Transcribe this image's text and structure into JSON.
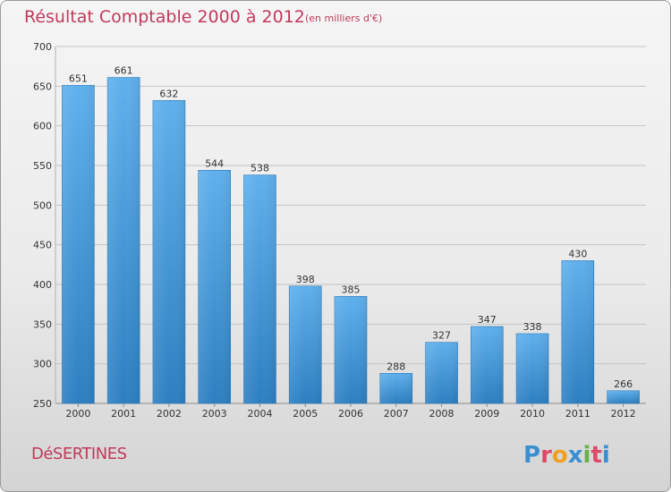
{
  "header": {
    "title": "Résultat Comptable 2000 à 2012",
    "subtitle": "(en milliers d'€)"
  },
  "footer": {
    "town": "DéSERTINES",
    "logo_text": "Proxiti"
  },
  "colors": {
    "title": "#c03a5a",
    "bar_top": "#5fb0ec",
    "bar_bottom": "#2d7fc1",
    "logo": [
      "#3a8fd1",
      "#e04a6a",
      "#f0a020",
      "#3a8fd1",
      "#6ab04c",
      "#e04a6a",
      "#3a8fd1"
    ]
  },
  "chart_data": {
    "type": "bar",
    "categories": [
      "2000",
      "2001",
      "2002",
      "2003",
      "2004",
      "2005",
      "2006",
      "2007",
      "2008",
      "2009",
      "2010",
      "2011",
      "2012"
    ],
    "values": [
      651,
      661,
      632,
      544,
      538,
      398,
      385,
      288,
      327,
      347,
      338,
      430,
      266
    ],
    "ylim": [
      250,
      700
    ],
    "yticks": [
      250,
      300,
      350,
      400,
      450,
      500,
      550,
      600,
      650,
      700
    ],
    "grid": true,
    "xlabel": "",
    "ylabel": ""
  }
}
